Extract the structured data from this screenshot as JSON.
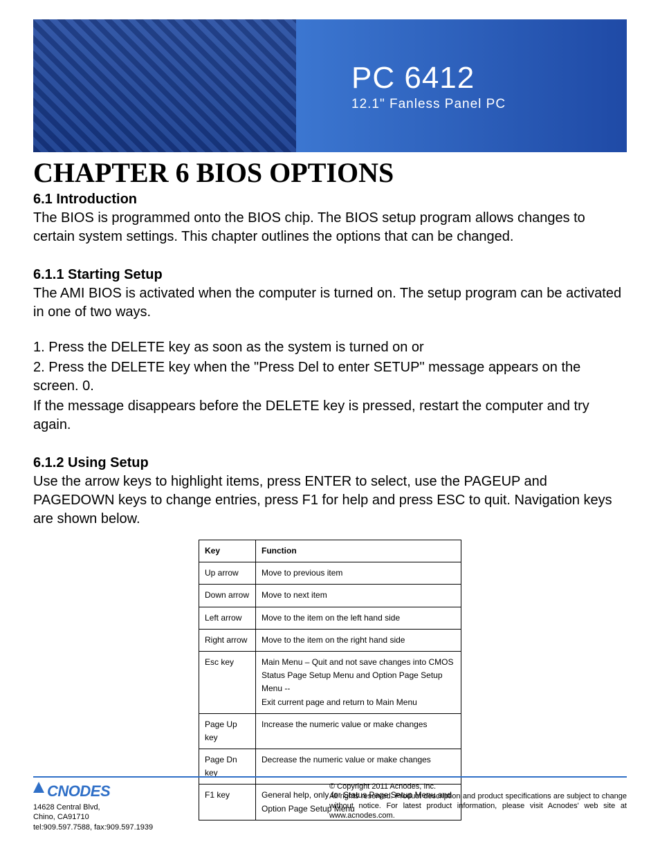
{
  "banner": {
    "title": "PC 6412",
    "subtitle": "12.1\" Fanless Panel PC",
    "title_color": "#ffffff",
    "subtitle_color": "#ffffff",
    "bg_gradient_from": "#2a66c4",
    "bg_gradient_to": "#1f4aa6",
    "title_fontsize": 44,
    "subtitle_fontsize": 19
  },
  "chapter": {
    "title": "CHAPTER 6 BIOS OPTIONS",
    "title_fontsize": 40,
    "title_font": "Times New Roman"
  },
  "sections": {
    "intro_h": "6.1 Introduction",
    "intro_p": "The BIOS is programmed onto the BIOS chip. The BIOS setup program allows changes to certain system settings. This chapter outlines the options that can be changed.",
    "start_h": "6.1.1 Starting Setup",
    "start_p1": "The AMI BIOS is activated when the computer is turned on. The setup program can be activated in one of two ways.",
    "start_l1": "1.   Press the DELETE key as soon as the system is turned on or",
    "start_l2": "2.   Press the DELETE key when the \"Press Del to enter SETUP\" message appears on the screen. 0.",
    "start_p2": "If the message disappears before the DELETE key is pressed, restart the computer and try again.",
    "using_h": "6.1.2 Using Setup",
    "using_p": "Use the arrow keys to highlight items, press ENTER  to select, use the PAGEUP  and PAGEDOWN keys to change entries, press F1 for help and press ESC to quit. Navigation keys are shown below."
  },
  "nav_table": {
    "col_key": "Key",
    "col_func": "Function",
    "rows": [
      {
        "key": "Up arrow",
        "func": "Move to previous item"
      },
      {
        "key": "Down arrow",
        "func": "Move to next item"
      },
      {
        "key": "Left arrow",
        "func": "Move to the item on the left hand side"
      },
      {
        "key": "Right arrow",
        "func": "Move to the item on the right hand side"
      },
      {
        "key": "Esc key",
        "func": "Main Menu – Quit and not save changes into CMOS\nStatus Page Setup Menu and Option Page Setup Menu --\nExit current page and return to Main Menu"
      },
      {
        "key": "Page Up key",
        "func": "Increase the numeric value or make changes"
      },
      {
        "key": "Page Dn key",
        "func": "Decrease the numeric value or make changes"
      },
      {
        "key": "F1 key",
        "func": "General help, only for Status Page Setup Menu and Option Page Setup Menu"
      }
    ],
    "font_size": 12,
    "border_color": "#000000",
    "key_col_width": 82
  },
  "footer": {
    "rule_color": "#2f6fc7",
    "logo_text": "CNODES",
    "logo_color": "#2f6fc7",
    "address1": "14628 Central Blvd,",
    "address2": "Chino, CA91710",
    "contact": "tel:909.597.7588, fax:909.597.1939",
    "copyright": "© Copyright 2011 Acnodes, Inc.",
    "rights": "All rights reserved. Product description and product specifications are subject to change without notice. For latest product information, please visit Acnodes' web site at www.acnodes.com."
  }
}
